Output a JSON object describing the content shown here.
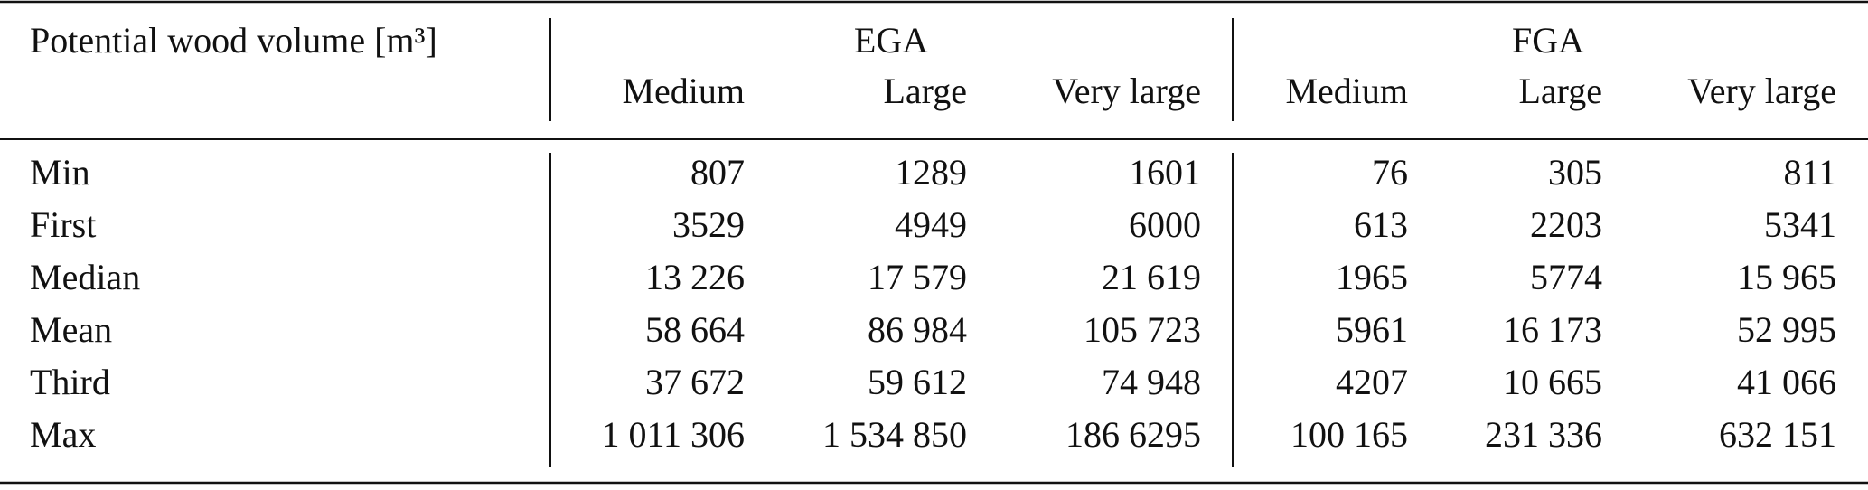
{
  "table": {
    "header": {
      "label": "Potential wood volume [m³]",
      "groups": [
        "EGA",
        "FGA"
      ],
      "columns": [
        "Medium",
        "Large",
        "Very large",
        "Medium",
        "Large",
        "Very large"
      ]
    },
    "rows": [
      [
        "Min",
        "807",
        "1289",
        "1601",
        "76",
        "305",
        "811"
      ],
      [
        "First",
        "3529",
        "4949",
        "6000",
        "613",
        "2203",
        "5341"
      ],
      [
        "Median",
        "13 226",
        "17 579",
        "21 619",
        "1965",
        "5774",
        "15 965"
      ],
      [
        "Mean",
        "58 664",
        "86 984",
        "105 723",
        "5961",
        "16 173",
        "52 995"
      ],
      [
        "Third",
        "37 672",
        "59 612",
        "74 948",
        "4207",
        "10 665",
        "41 066"
      ],
      [
        "Max",
        "1 011 306",
        "1 534 850",
        "186 6295",
        "100 165",
        "231 336",
        "632 151"
      ]
    ]
  }
}
